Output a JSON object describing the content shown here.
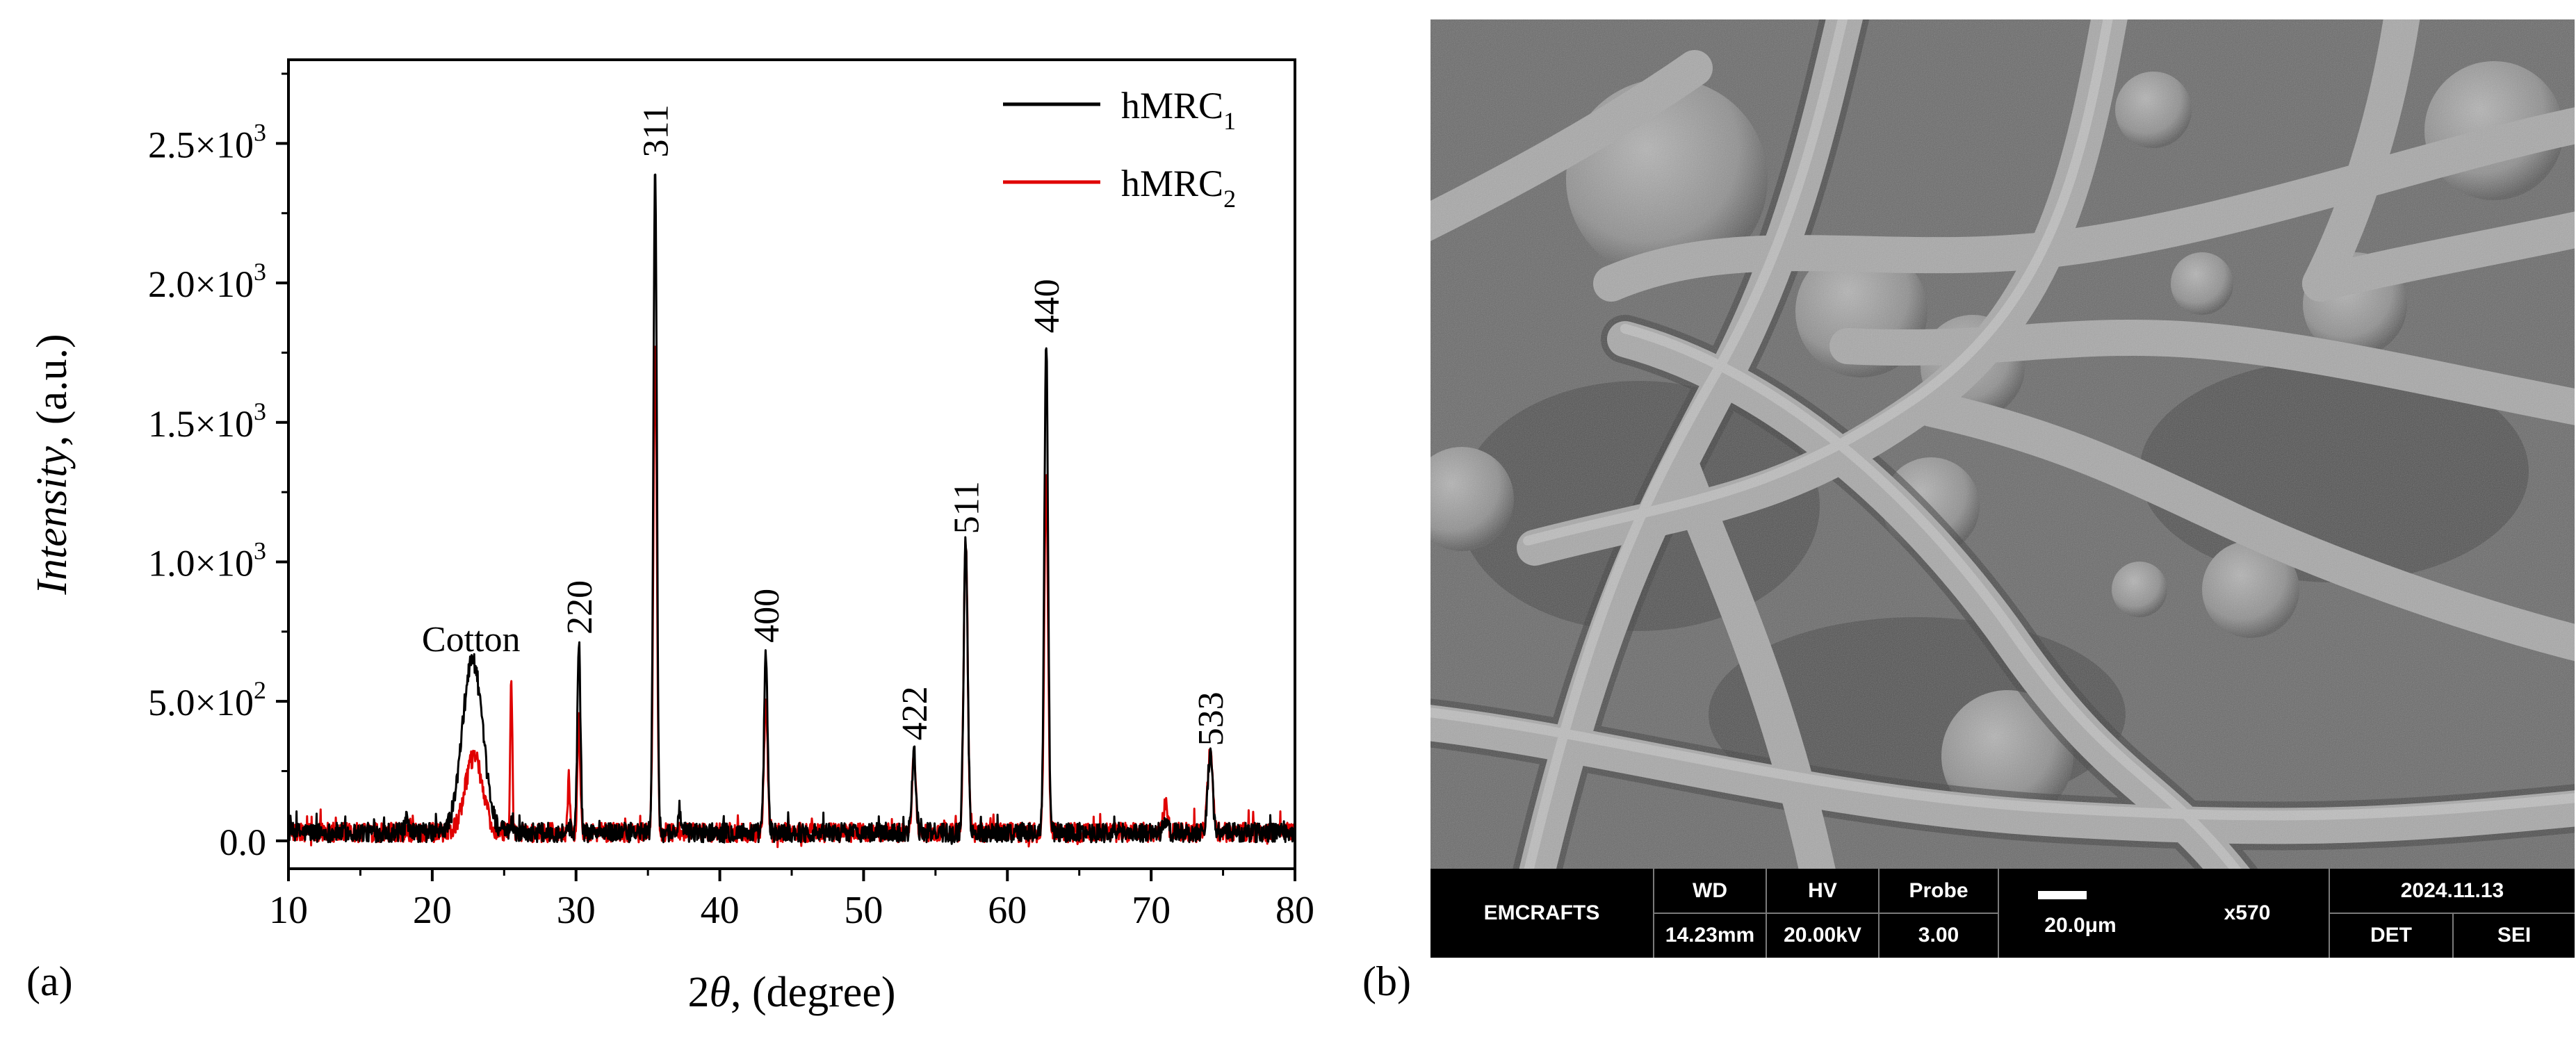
{
  "chart_data": {
    "type": "line",
    "xlabel_prefix": "2",
    "xlabel_theta": "θ",
    "xlabel_suffix": ", (degree)",
    "ylabel_main": "Intensity",
    "ylabel_suffix": ", (a.u.)",
    "xlim": [
      10,
      80
    ],
    "ylim": [
      -100,
      2800
    ],
    "x_ticks": [
      10,
      20,
      30,
      40,
      50,
      60,
      70,
      80
    ],
    "y_ticks": [
      {
        "value": 0,
        "mant": "0.0",
        "exp": ""
      },
      {
        "value": 500,
        "mant": "5.0×10",
        "exp": "2"
      },
      {
        "value": 1000,
        "mant": "1.0×10",
        "exp": "3"
      },
      {
        "value": 1500,
        "mant": "1.5×10",
        "exp": "3"
      },
      {
        "value": 2000,
        "mant": "2.0×10",
        "exp": "3"
      },
      {
        "value": 2500,
        "mant": "2.5×10",
        "exp": "3"
      }
    ],
    "legend_position": "top-right",
    "grid": false,
    "series": [
      {
        "name_base": "hMRC",
        "name_sub": "1",
        "color": "#000000",
        "baseline": 30,
        "humps": [
          [
            22.8,
            620,
            0.7
          ]
        ],
        "peaks": [
          [
            18.2,
            40,
            0.1
          ],
          [
            25.5,
            30,
            0.06
          ],
          [
            29.5,
            30,
            0.08
          ],
          [
            30.2,
            680,
            0.11
          ],
          [
            35.5,
            2380,
            0.12
          ],
          [
            37.2,
            80,
            0.1
          ],
          [
            43.2,
            640,
            0.12
          ],
          [
            53.5,
            300,
            0.13
          ],
          [
            57.1,
            1050,
            0.14
          ],
          [
            62.7,
            1760,
            0.13
          ],
          [
            71.0,
            40,
            0.15
          ],
          [
            74.1,
            280,
            0.17
          ]
        ]
      },
      {
        "name_base": "hMRC",
        "name_sub": "2",
        "color": "#e00000",
        "baseline": 30,
        "humps": [
          [
            22.9,
            270,
            0.6
          ]
        ],
        "peaks": [
          [
            25.5,
            560,
            0.07
          ],
          [
            29.5,
            190,
            0.08
          ],
          [
            30.2,
            380,
            0.1
          ],
          [
            35.5,
            1760,
            0.12
          ],
          [
            43.2,
            480,
            0.12
          ],
          [
            53.5,
            300,
            0.13
          ],
          [
            57.1,
            1050,
            0.14
          ],
          [
            62.7,
            1280,
            0.13
          ],
          [
            71.0,
            110,
            0.15
          ],
          [
            74.1,
            280,
            0.17
          ]
        ]
      }
    ],
    "annotations": [
      {
        "text": "Cotton",
        "x": 22.7,
        "y": 680,
        "rotate": false
      },
      {
        "text": "220",
        "x": 30.2,
        "y": 740,
        "rotate": true
      },
      {
        "text": "311",
        "x": 35.5,
        "y": 2450,
        "rotate": true
      },
      {
        "text": "400",
        "x": 43.2,
        "y": 710,
        "rotate": true
      },
      {
        "text": "422",
        "x": 53.5,
        "y": 360,
        "rotate": true
      },
      {
        "text": "511",
        "x": 57.1,
        "y": 1100,
        "rotate": true
      },
      {
        "text": "440",
        "x": 62.7,
        "y": 1820,
        "rotate": true
      },
      {
        "text": "533",
        "x": 74.1,
        "y": 340,
        "rotate": true
      }
    ]
  },
  "panel_labels": {
    "a": "(a)",
    "b": "(b)"
  },
  "sem": {
    "brand": "EMCRAFTS",
    "wd_label": "WD",
    "wd_value": "14.23mm",
    "hv_label": "HV",
    "hv_value": "20.00kV",
    "probe_label": "Probe",
    "probe_value": "3.00",
    "scale_text": "20.0μm",
    "magnification": "x570",
    "date": "2024.11.13",
    "det_label": "DET",
    "det_value": "SEI"
  }
}
